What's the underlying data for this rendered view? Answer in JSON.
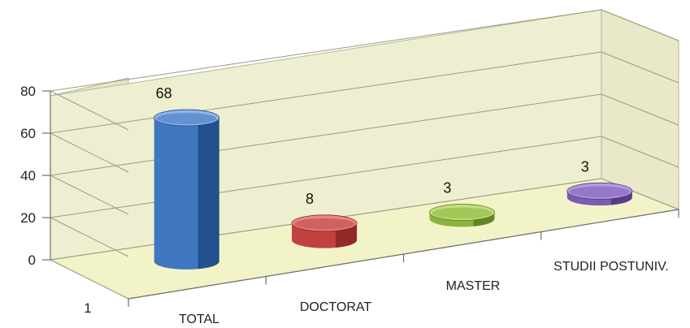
{
  "chart_data": {
    "type": "bar",
    "categories": [
      "TOTAL",
      "DOCTORAT",
      "MASTER",
      "STUDII POSTUNIV."
    ],
    "series_label": "1",
    "values": [
      68,
      8,
      3,
      3
    ],
    "data_labels": [
      "68",
      "8",
      "3",
      "3"
    ],
    "yticks": [
      "0",
      "20",
      "40",
      "60",
      "80"
    ],
    "ylim": [
      0,
      80
    ],
    "grid": true,
    "colors": {
      "bars": [
        "#3f77c0",
        "#c0413e",
        "#8bb43d",
        "#7c5bb2"
      ],
      "bars_dark": [
        "#1f4a85",
        "#8a2624",
        "#5d7d22",
        "#53377f"
      ],
      "bars_light": [
        "#8fb4e8",
        "#e28a88",
        "#c1df7c",
        "#b39be0"
      ],
      "wall": "#eeeed0",
      "floor": "#f3f3c8"
    }
  }
}
